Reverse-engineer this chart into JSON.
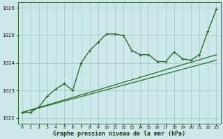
{
  "bg_color": "#cce8e8",
  "grid_color": "#aacccc",
  "line_color": "#2d6b2d",
  "xlabel": "Graphe pression niveau de la mer (hPa)",
  "xlim": [
    -0.5,
    23.5
  ],
  "ylim": [
    1021.8,
    1026.2
  ],
  "yticks": [
    1022,
    1023,
    1024,
    1025,
    1026
  ],
  "xticks": [
    0,
    1,
    2,
    3,
    4,
    5,
    6,
    7,
    8,
    9,
    10,
    11,
    12,
    13,
    14,
    15,
    16,
    17,
    18,
    19,
    20,
    21,
    22,
    23
  ],
  "line1_x": [
    0,
    1,
    2,
    3,
    4,
    5,
    6,
    7,
    8,
    9,
    10,
    11,
    12,
    13,
    14,
    15,
    16,
    17,
    18,
    19,
    20,
    21,
    22,
    23
  ],
  "line1_y": [
    1022.2,
    1022.2,
    1022.4,
    1022.8,
    1023.05,
    1023.25,
    1023.0,
    1024.0,
    1024.45,
    1024.75,
    1025.05,
    1025.05,
    1025.0,
    1024.45,
    1024.3,
    1024.3,
    1024.05,
    1024.05,
    1024.4,
    1024.15,
    1024.1,
    1024.3,
    1025.15,
    1025.95
  ],
  "line2_x": [
    0,
    23
  ],
  "line2_y": [
    1022.2,
    1024.1
  ],
  "line3_x": [
    0,
    23
  ],
  "line3_y": [
    1022.2,
    1024.3
  ],
  "marker": "+",
  "marker_size": 3.5,
  "linewidth": 1.0,
  "linewidth_straight": 0.9
}
